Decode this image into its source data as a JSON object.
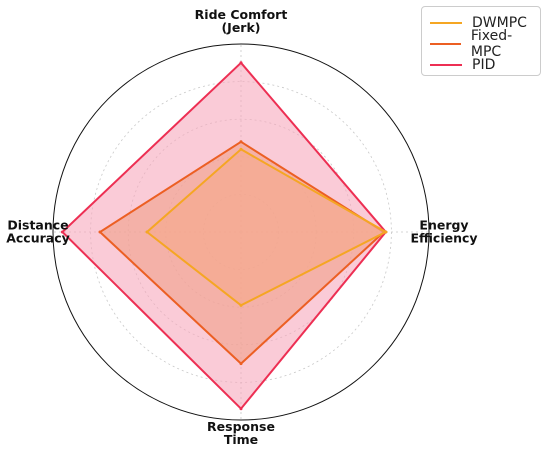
{
  "chart_data": {
    "type": "radar",
    "title": "",
    "axes": [
      "Ride Comfort\n(Jerk)",
      "Energy\nEfficiency",
      "Response\nTime",
      "Distance\nAccuracy"
    ],
    "rmax": 1.0,
    "grid": true,
    "legend_position": "top-right",
    "series": [
      {
        "name": "PID",
        "values": [
          0.9,
          0.77,
          0.94,
          0.95
        ],
        "color": "#ed2f53",
        "fill": "#f7a8bd"
      },
      {
        "name": "Fixed-MPC",
        "values": [
          0.48,
          0.76,
          0.7,
          0.75
        ],
        "color": "#ec5f23",
        "fill": "#f0a088"
      },
      {
        "name": "DWMPC",
        "values": [
          0.44,
          0.77,
          0.39,
          0.5
        ],
        "color": "#f5a623",
        "fill": "#f5a88a"
      }
    ],
    "legend": [
      {
        "name": "DWMPC",
        "color": "#f5a623"
      },
      {
        "name": "Fixed-MPC",
        "color": "#ec5f23"
      },
      {
        "name": "PID",
        "color": "#ed2f53"
      }
    ]
  }
}
